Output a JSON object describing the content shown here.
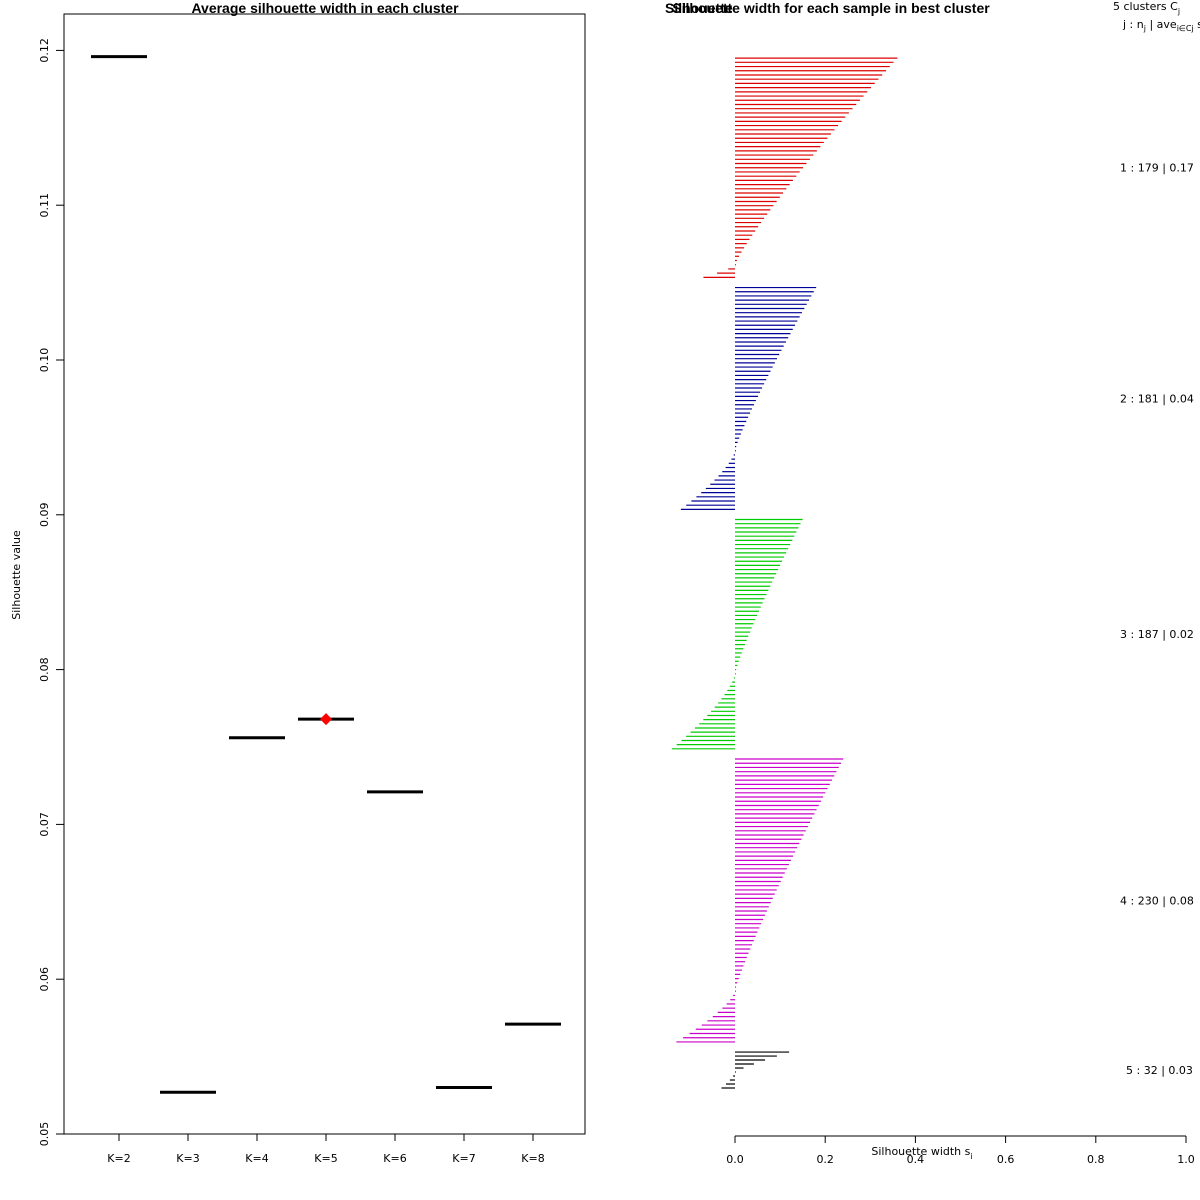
{
  "chart_data": [
    {
      "type": "scatter",
      "title": "Average silhouette width in each cluster",
      "xlabel": "",
      "ylabel": "Silhouette value",
      "categories": [
        "K=2",
        "K=3",
        "K=4",
        "K=5",
        "K=6",
        "K=7",
        "K=8"
      ],
      "values": [
        0.1196,
        0.0527,
        0.0756,
        0.0768,
        0.0721,
        0.053,
        0.0571
      ],
      "best": "K=5",
      "best_color": "#ff0000",
      "ylim": [
        0.05,
        0.122
      ],
      "yticks": [
        "0.05",
        "0.06",
        "0.07",
        "0.08",
        "0.09",
        "0.10",
        "0.11",
        "0.12"
      ],
      "ytick_values": [
        0.05,
        0.06,
        0.07,
        0.08,
        0.09,
        0.1,
        0.11,
        0.12
      ]
    },
    {
      "type": "bar",
      "title": "Silhouette width for each sample in best cluster",
      "overlap_title": "Silhouette",
      "xlabel": "Silhouette width s",
      "xlabel_sub": "i",
      "xlim": [
        0,
        1
      ],
      "xticks": [
        "0.0",
        "0.2",
        "0.4",
        "0.6",
        "0.8",
        "1.0"
      ],
      "xtick_values": [
        0,
        0.2,
        0.4,
        0.6,
        0.8,
        1.0
      ],
      "legend_title": "5 clusters C",
      "legend_title_sub": "j",
      "legend_header": "j : n",
      "legend_header_sub": "j",
      "legend_header_mid": " | ave",
      "legend_header_sub2": "i∈Cj",
      "legend_header_end": " s",
      "clusters": [
        {
          "label": "1 :  179  |  0.17",
          "n": 179,
          "avg": 0.17,
          "color": "#dd0000",
          "max": 0.36,
          "min": -0.07,
          "neg_frac": 0.06
        },
        {
          "label": "2 :  181  |  0.04",
          "n": 181,
          "avg": 0.04,
          "color": "#000099",
          "max": 0.18,
          "min": -0.12,
          "neg_frac": 0.25
        },
        {
          "label": "3 :  187  |  0.02",
          "n": 187,
          "avg": 0.02,
          "color": "#00cc00",
          "max": 0.15,
          "min": -0.14,
          "neg_frac": 0.33
        },
        {
          "label": "4 :  230  |  0.08",
          "n": 230,
          "avg": 0.08,
          "color": "#cc00cc",
          "max": 0.24,
          "min": -0.13,
          "neg_frac": 0.17
        },
        {
          "label": "5 :  32  |  0.03",
          "n": 32,
          "avg": 0.03,
          "color": "#000000",
          "max": 0.12,
          "min": -0.03,
          "neg_frac": 0.35
        }
      ]
    }
  ]
}
